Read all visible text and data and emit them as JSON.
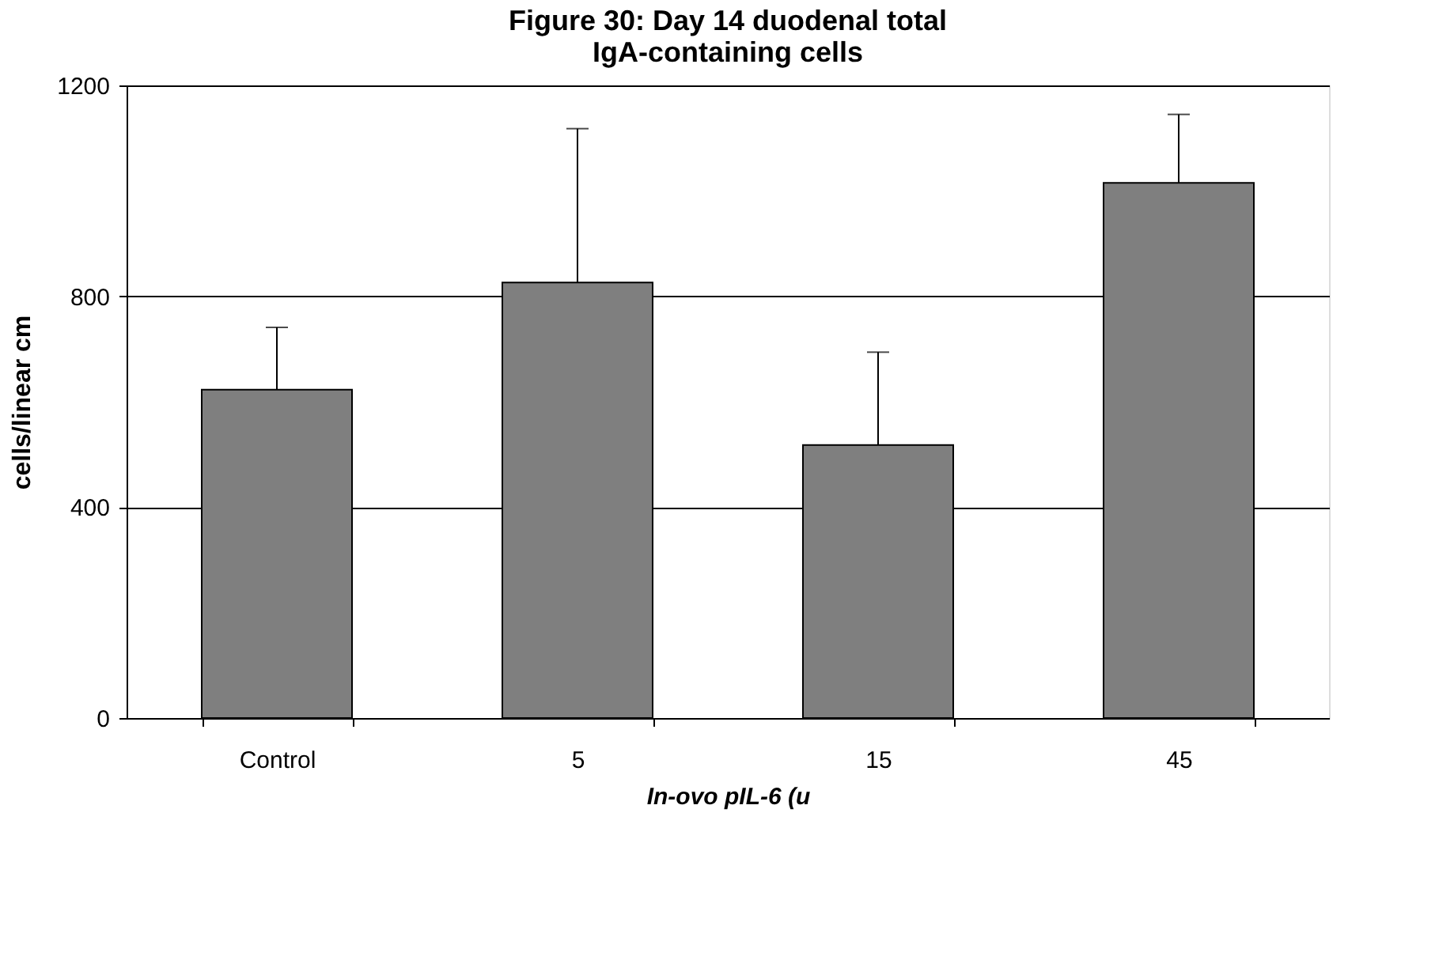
{
  "chart_data": {
    "type": "bar",
    "title": "Figure 30:  Day 14 duodenal total IgA-containing cells",
    "xlabel": "In-ovo  pIL-6  (u",
    "ylabel": "cells/linear   cm",
    "categories": [
      "Control",
      "5",
      "15",
      "45"
    ],
    "values": [
      623,
      826,
      518,
      1015
    ],
    "errors": [
      [
        623,
        741
      ],
      [
        826,
        1118
      ],
      [
        518,
        694
      ],
      [
        1015,
        1145
      ]
    ],
    "color": "#7f7f7f",
    "ylim": [
      0,
      1200
    ],
    "yticks": [
      0,
      400,
      800,
      1200
    ],
    "grid": "y"
  }
}
